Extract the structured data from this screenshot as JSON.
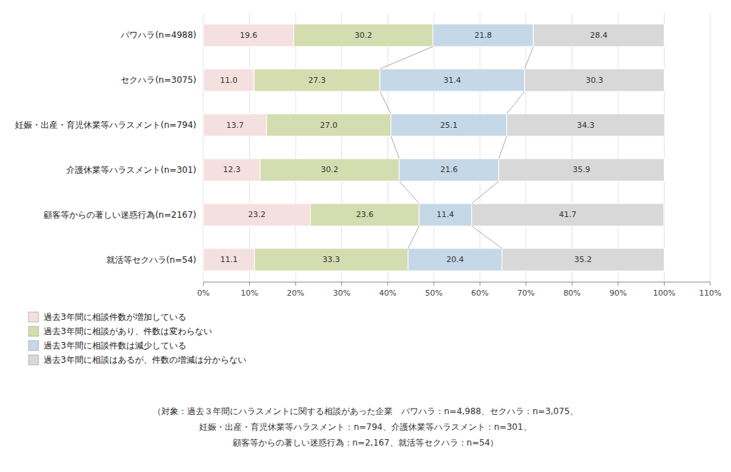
{
  "chart_data": {
    "type": "bar",
    "orientation": "horizontal",
    "stacked": true,
    "data_labels": true,
    "grid": true,
    "legend": "bottom",
    "categories": [
      "パワハラ(n=4988)",
      "セクハラ(n=3075)",
      "妊娠・出産・育児休業等ハラスメント(n=794)",
      "介護休業等ハラスメント(n=301)",
      "顧客等からの著しい迷惑行為(n=2167)",
      "就活等セクハラ(n=54)"
    ],
    "series": [
      {
        "name": "過去3年間に相談件数が増加している",
        "color": "#f5e0e0",
        "values": [
          19.6,
          11.0,
          13.7,
          12.3,
          23.2,
          11.1
        ],
        "value_labels": [
          "19.6",
          "11.0",
          "13.7",
          "12.3",
          "23.2",
          "11.1"
        ]
      },
      {
        "name": "過去3年間に相談があり、件数は変わらない",
        "color": "#d4ddb0",
        "values": [
          30.2,
          27.3,
          27.0,
          30.2,
          23.6,
          33.3
        ],
        "value_labels": [
          "30.2",
          "27.3",
          "27.0",
          "30.2",
          "23.6",
          "33.3"
        ]
      },
      {
        "name": "過去3年間に相談件数は減少している",
        "color": "#c5d8e8",
        "values": [
          21.8,
          31.4,
          25.1,
          21.6,
          11.4,
          20.4
        ],
        "value_labels": [
          "21.8",
          "31.4",
          "25.1",
          "21.6",
          "11.4",
          "20.4"
        ]
      },
      {
        "name": "過去3年間に相談はあるが、件数の増減は分からない",
        "color": "#d8d8d8",
        "values": [
          28.4,
          30.3,
          34.3,
          35.9,
          41.7,
          35.2
        ],
        "value_labels": [
          "28.4",
          "30.3",
          "34.3",
          "35.9",
          "41.7",
          "35.2"
        ]
      }
    ],
    "xlim": [
      0,
      110
    ],
    "xticks": [
      {
        "value": 0,
        "label": "0%"
      },
      {
        "value": 10,
        "label": "10%"
      },
      {
        "value": 20,
        "label": "20%"
      },
      {
        "value": 30,
        "label": "30%"
      },
      {
        "value": 40,
        "label": "40%"
      },
      {
        "value": 50,
        "label": "50%"
      },
      {
        "value": 60,
        "label": "60%"
      },
      {
        "value": 70,
        "label": "70%"
      },
      {
        "value": 80,
        "label": "80%"
      },
      {
        "value": 90,
        "label": "90%"
      },
      {
        "value": 100,
        "label": "100%"
      },
      {
        "value": 110,
        "label": "110%"
      }
    ],
    "annotations": [
      "（対象：過去３年間にハラスメントに関する相談があった企業　パワハラ：n=4,988、セクハラ：n=3,075、",
      "妊娠・出産・育児休業等ハラスメント：n=794、介護休業等ハラスメント：n=301、",
      "顧客等からの著しい迷惑行為：n=2,167、就活等セクハラ：n=54）"
    ]
  }
}
